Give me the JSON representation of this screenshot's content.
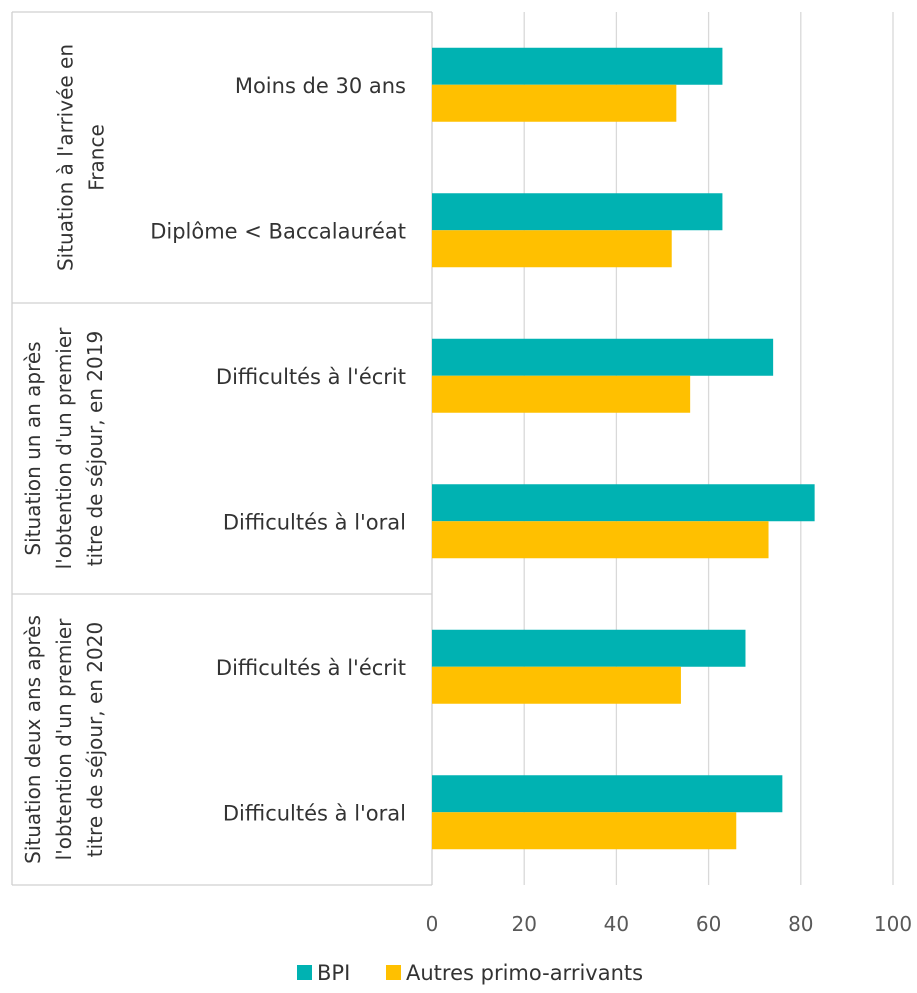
{
  "chart_data": {
    "type": "bar",
    "orientation": "horizontal",
    "groups": [
      {
        "label_lines": [
          "Situation à l'arrivée en",
          "France"
        ],
        "categories": [
          "Moins de 30 ans",
          "Diplôme < Baccalauréat"
        ]
      },
      {
        "label_lines": [
          "Situation un an après",
          "l'obtention d'un premier",
          "titre de séjour, en 2019"
        ],
        "categories": [
          "Difficultés à l'écrit",
          "Difficultés à l'oral"
        ]
      },
      {
        "label_lines": [
          "Situation deux ans après",
          "l'obtention d'un premier",
          "titre de séjour, en 2020"
        ],
        "categories": [
          "Difficultés à l'écrit",
          "Difficultés à l'oral"
        ]
      }
    ],
    "categories": [
      "Moins de 30 ans",
      "Diplôme < Baccalauréat",
      "Difficultés à l'écrit",
      "Difficultés à l'oral",
      "Difficultés à l'écrit",
      "Difficultés à l'oral"
    ],
    "series": [
      {
        "name": "BPI",
        "color": "#00B2B2",
        "values": [
          63,
          63,
          74,
          83,
          68,
          76
        ]
      },
      {
        "name": "Autres primo-arrivants",
        "color": "#FFC000",
        "values": [
          53,
          52,
          56,
          73,
          54,
          66
        ]
      }
    ],
    "xlim": [
      0,
      100
    ],
    "xticks": [
      "0",
      "20",
      "40",
      "60",
      "80",
      "100"
    ],
    "grid": true,
    "legend": "bottom"
  }
}
